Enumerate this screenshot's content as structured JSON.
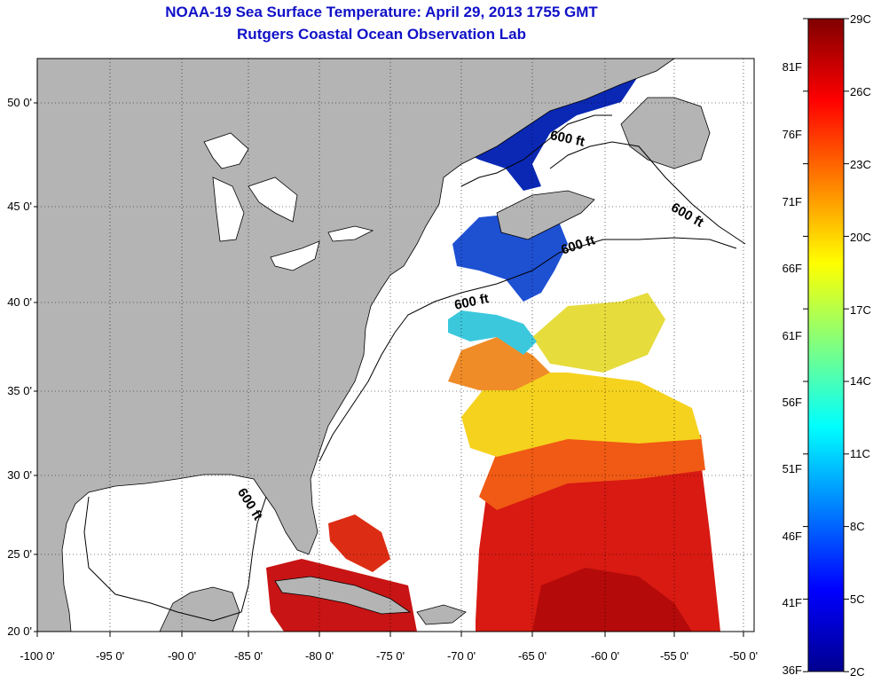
{
  "title": "NOAA-19 Sea Surface Temperature:  April 29, 2013 1755 GMT",
  "subtitle": "Rutgers Coastal Ocean Observation Lab",
  "lat_ticks": [
    "50 0'",
    "45 0'",
    "40 0'",
    "35 0'",
    "30 0'",
    "25 0'",
    "20 0'"
  ],
  "lon_ticks": [
    "-100 0'",
    "-95 0'",
    "-90 0'",
    "-85 0'",
    "-80 0'",
    "-75 0'",
    "-70 0'",
    "-65 0'",
    "-60 0'",
    "-55 0'",
    "-50 0'"
  ],
  "isobath_labels": [
    "600 ft",
    "600 ft",
    "600 ft",
    "600 ft",
    "600 ft"
  ],
  "colorbar": {
    "celsius": [
      "29C",
      "26C",
      "23C",
      "20C",
      "17C",
      "14C",
      "11C",
      "8C",
      "5C",
      "2C"
    ],
    "fahrenheit": [
      "81F",
      "76F",
      "71F",
      "66F",
      "61F",
      "56F",
      "51F",
      "46F",
      "41F",
      "36F"
    ],
    "stops": [
      "#00008f",
      "#0000ff",
      "#0080ff",
      "#00ffff",
      "#80ff80",
      "#ffff00",
      "#ff8000",
      "#ff0000",
      "#800000"
    ]
  },
  "colors": {
    "land": "#b4b4b4",
    "title": "#1010c8",
    "no_data": "#ffffff"
  }
}
